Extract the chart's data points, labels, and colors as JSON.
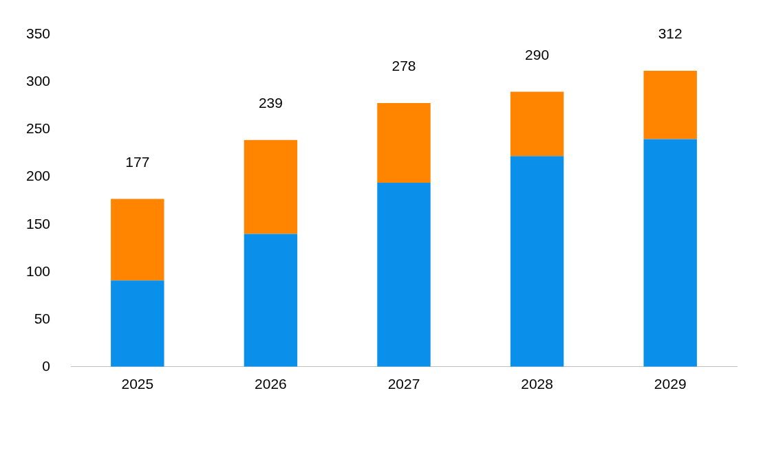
{
  "chart_data": {
    "type": "bar",
    "stacked": true,
    "categories": [
      "2025",
      "2026",
      "2027",
      "2028",
      "2029"
    ],
    "series": [
      {
        "color": "#0a8fea",
        "values": [
          91,
          140,
          194,
          222,
          240
        ]
      },
      {
        "color": "#ff8400",
        "values": [
          86,
          99,
          84,
          68,
          72
        ]
      }
    ],
    "totals": [
      "177",
      "239",
      "278",
      "290",
      "312"
    ],
    "ylim": [
      0,
      350
    ],
    "yticks": [
      0,
      50,
      100,
      150,
      200,
      250,
      300,
      350
    ],
    "grid": false,
    "legend": false
  }
}
